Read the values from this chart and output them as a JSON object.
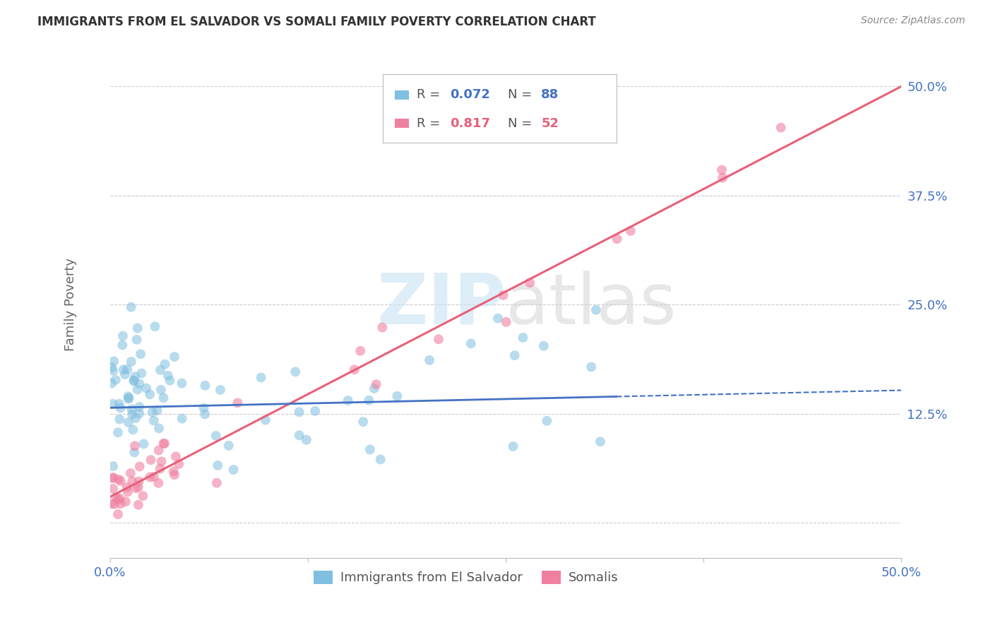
{
  "title": "IMMIGRANTS FROM EL SALVADOR VS SOMALI FAMILY POVERTY CORRELATION CHART",
  "source": "Source: ZipAtlas.com",
  "ylabel": "Family Poverty",
  "color_blue": "#7fbfdf",
  "color_pink": "#f080a0",
  "color_blue_line": "#4472c4",
  "color_pink_line": "#e8607a",
  "color_tick_label": "#4472c4",
  "color_title": "#333333",
  "color_source": "#888888",
  "color_ylabel": "#666666",
  "color_grid": "#cccccc",
  "background_color": "#ffffff",
  "xlim": [
    0.0,
    0.5
  ],
  "ylim": [
    -0.04,
    0.54
  ],
  "ytick_vals": [
    0.0,
    0.125,
    0.25,
    0.375,
    0.5
  ],
  "ytick_labels": [
    "",
    "12.5%",
    "25.0%",
    "37.5%",
    "50.0%"
  ],
  "xtick_vals": [
    0.0,
    0.125,
    0.25,
    0.375,
    0.5
  ],
  "xtick_labels": [
    "0.0%",
    "",
    "",
    "",
    "50.0%"
  ],
  "n_salvador": 88,
  "n_somali": 52,
  "blue_line_solid_end": 0.32,
  "watermark_zip_color": "#c8e4f4",
  "watermark_atlas_color": "#d0d0d0"
}
